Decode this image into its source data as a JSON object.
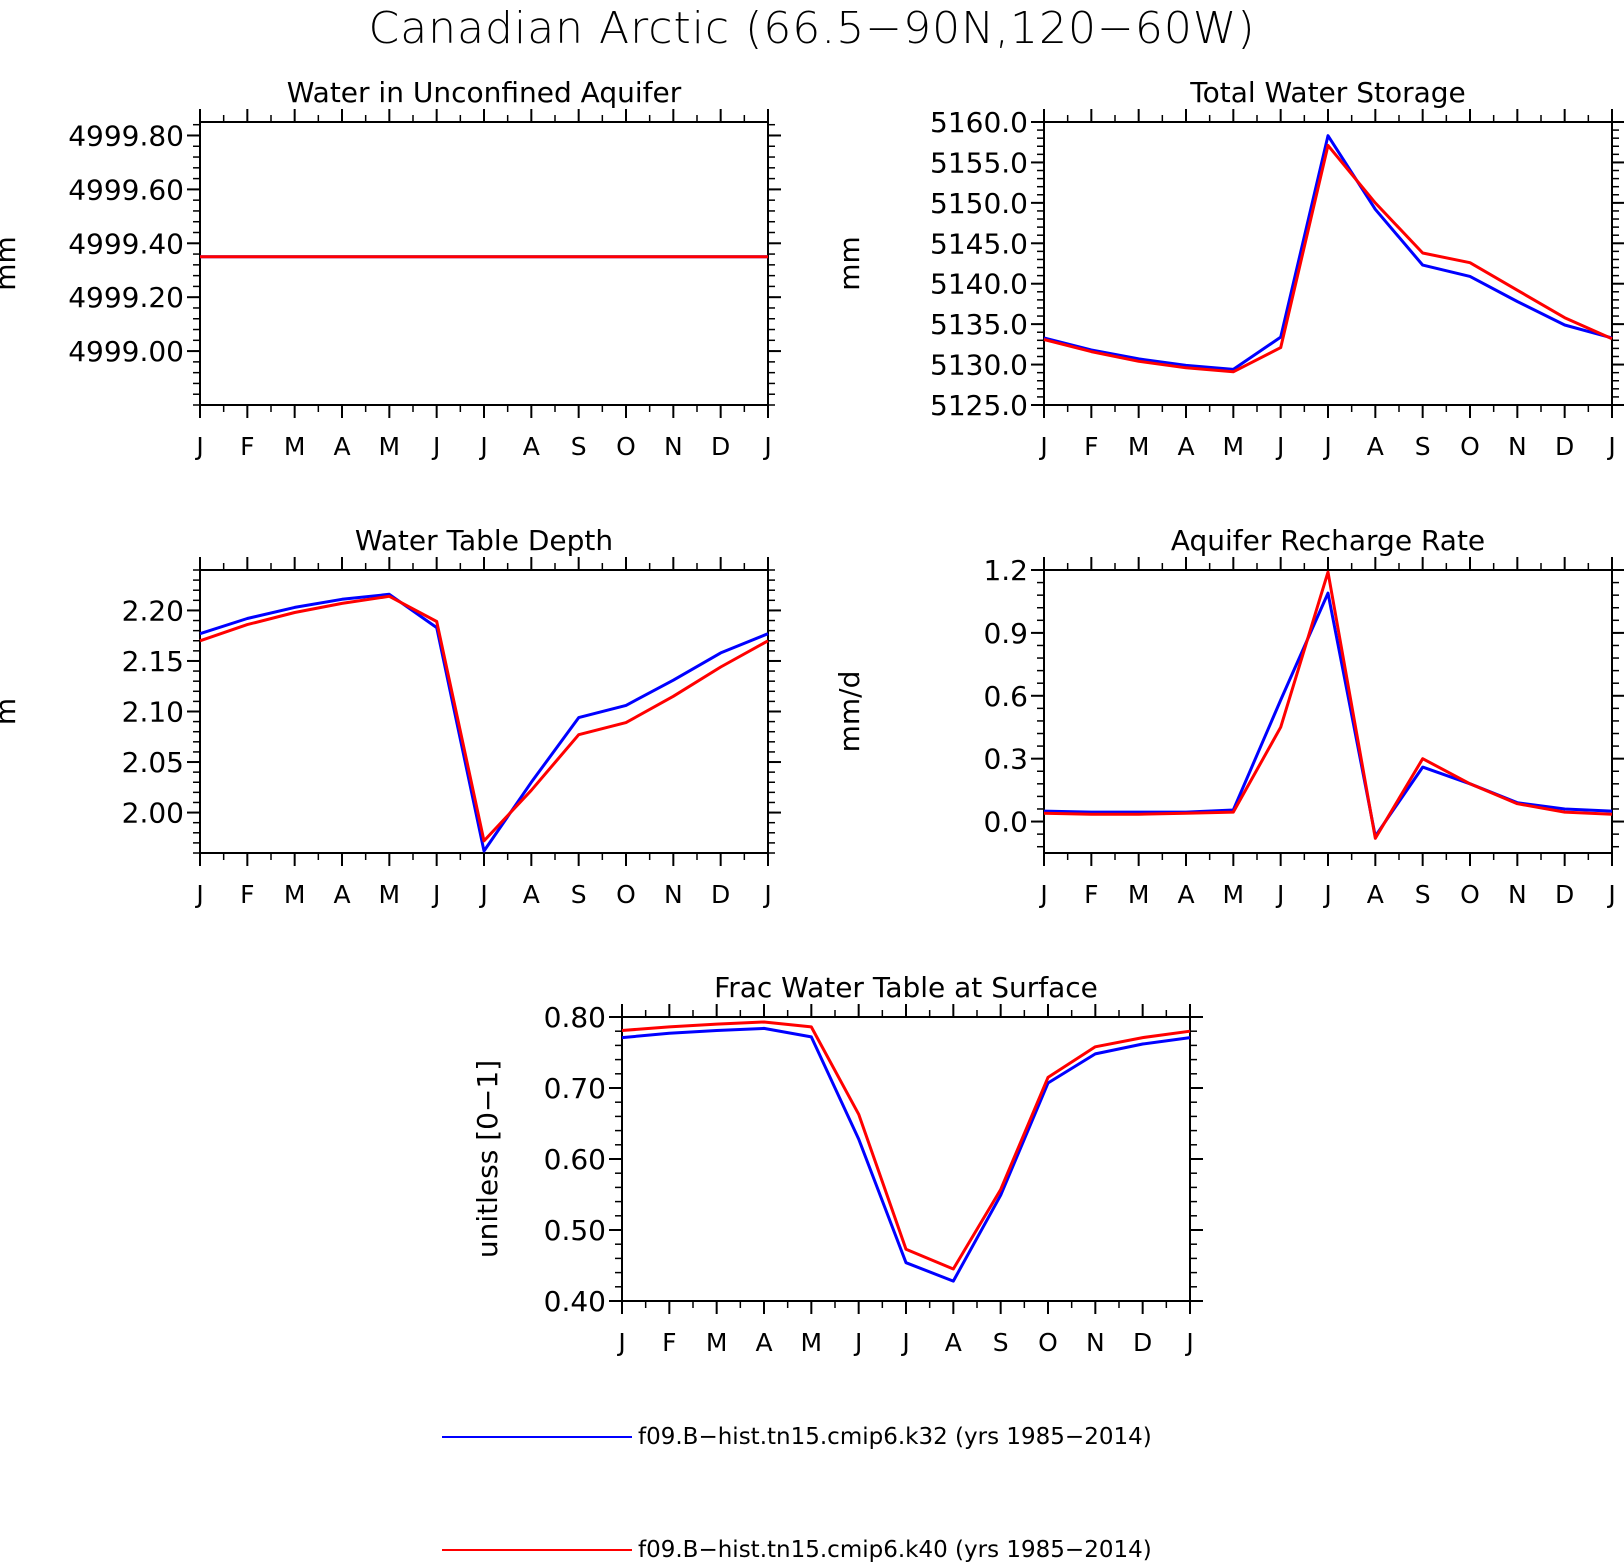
{
  "title": "Canadian Arctic (66.5−90N,120−60W)",
  "colors": {
    "run1": "#0000ff",
    "run2": "#ff0000"
  },
  "legend": [
    {
      "label": "f09.B−hist.tn15.cmip6.k32 (yrs 1985−2014)",
      "color": "#0000ff"
    },
    {
      "label": "f09.B−hist.tn15.cmip6.k40 (yrs 1985−2014)",
      "color": "#ff0000"
    }
  ],
  "chart_data": [
    {
      "id": "aquifer",
      "type": "line",
      "title": "Water in Unconfined Aquifer",
      "ylabel": "mm",
      "categories": [
        "J",
        "F",
        "M",
        "A",
        "M",
        "J",
        "J",
        "A",
        "S",
        "O",
        "N",
        "D",
        "J"
      ],
      "ylim": [
        4998.8,
        4999.85
      ],
      "yticks": [
        "4999.00",
        "4999.20",
        "4999.40",
        "4999.60",
        "4999.80"
      ],
      "ytick_values": [
        4999.0,
        4999.2,
        4999.4,
        4999.6,
        4999.8
      ],
      "series": [
        {
          "name": "f09.B−hist.tn15.cmip6.k32 (yrs 1985−2014)",
          "color": "#0000ff",
          "values": [
            4999.35,
            4999.35,
            4999.35,
            4999.35,
            4999.35,
            4999.35,
            4999.35,
            4999.35,
            4999.35,
            4999.35,
            4999.35,
            4999.35,
            4999.35
          ]
        },
        {
          "name": "f09.B−hist.tn15.cmip6.k40 (yrs 1985−2014)",
          "color": "#ff0000",
          "values": [
            4999.35,
            4999.35,
            4999.35,
            4999.35,
            4999.35,
            4999.35,
            4999.35,
            4999.35,
            4999.35,
            4999.35,
            4999.35,
            4999.35,
            4999.35
          ]
        }
      ]
    },
    {
      "id": "storage",
      "type": "line",
      "title": "Total Water Storage",
      "ylabel": "mm",
      "categories": [
        "J",
        "F",
        "M",
        "A",
        "M",
        "J",
        "J",
        "A",
        "S",
        "O",
        "N",
        "D",
        "J"
      ],
      "ylim": [
        5125.0,
        5160.0
      ],
      "yticks": [
        "5125.0",
        "5130.0",
        "5135.0",
        "5140.0",
        "5145.0",
        "5150.0",
        "5155.0",
        "5160.0"
      ],
      "ytick_values": [
        5125,
        5130,
        5135,
        5140,
        5145,
        5150,
        5155,
        5160
      ],
      "series": [
        {
          "name": "f09.B−hist.tn15.cmip6.k32 (yrs 1985−2014)",
          "color": "#0000ff",
          "values": [
            5133.3,
            5131.8,
            5130.7,
            5129.9,
            5129.4,
            5133.4,
            5158.3,
            5149.2,
            5142.3,
            5140.9,
            5137.8,
            5134.9,
            5133.3
          ]
        },
        {
          "name": "f09.B−hist.tn15.cmip6.k40 (yrs 1985−2014)",
          "color": "#ff0000",
          "values": [
            5133.1,
            5131.6,
            5130.4,
            5129.6,
            5129.1,
            5132.1,
            5157.1,
            5150.0,
            5143.8,
            5142.6,
            5139.2,
            5135.8,
            5133.2
          ]
        }
      ]
    },
    {
      "id": "depth",
      "type": "line",
      "title": "Water Table Depth",
      "ylabel": "m",
      "categories": [
        "J",
        "F",
        "M",
        "A",
        "M",
        "J",
        "J",
        "A",
        "S",
        "O",
        "N",
        "D",
        "J"
      ],
      "ylim": [
        1.96,
        2.24
      ],
      "yticks": [
        "2.00",
        "2.05",
        "2.10",
        "2.15",
        "2.20"
      ],
      "ytick_values": [
        2.0,
        2.05,
        2.1,
        2.15,
        2.2
      ],
      "series": [
        {
          "name": "f09.B−hist.tn15.cmip6.k32 (yrs 1985−2014)",
          "color": "#0000ff",
          "values": [
            2.177,
            2.192,
            2.203,
            2.211,
            2.216,
            2.183,
            1.962,
            2.03,
            2.094,
            2.106,
            2.131,
            2.158,
            2.177
          ]
        },
        {
          "name": "f09.B−hist.tn15.cmip6.k40 (yrs 1985−2014)",
          "color": "#ff0000",
          "values": [
            2.17,
            2.186,
            2.198,
            2.207,
            2.214,
            2.189,
            1.972,
            2.022,
            2.077,
            2.089,
            2.115,
            2.144,
            2.17
          ]
        }
      ]
    },
    {
      "id": "recharge",
      "type": "line",
      "title": "Aquifer Recharge Rate",
      "ylabel": "mm/d",
      "categories": [
        "J",
        "F",
        "M",
        "A",
        "M",
        "J",
        "J",
        "A",
        "S",
        "O",
        "N",
        "D",
        "J"
      ],
      "ylim": [
        -0.15,
        1.2
      ],
      "yticks": [
        "0.0",
        "0.3",
        "0.6",
        "0.9",
        "1.2"
      ],
      "ytick_values": [
        0.0,
        0.3,
        0.6,
        0.9,
        1.2
      ],
      "series": [
        {
          "name": "f09.B−hist.tn15.cmip6.k32 (yrs 1985−2014)",
          "color": "#0000ff",
          "values": [
            0.05,
            0.045,
            0.045,
            0.045,
            0.055,
            0.58,
            1.09,
            -0.07,
            0.26,
            0.18,
            0.09,
            0.06,
            0.05
          ]
        },
        {
          "name": "f09.B−hist.tn15.cmip6.k40 (yrs 1985−2014)",
          "color": "#ff0000",
          "values": [
            0.04,
            0.035,
            0.035,
            0.04,
            0.045,
            0.45,
            1.19,
            -0.08,
            0.3,
            0.18,
            0.085,
            0.045,
            0.035
          ]
        }
      ]
    },
    {
      "id": "frac",
      "type": "line",
      "title": "Frac Water Table at Surface",
      "ylabel": "unitless [0−1]",
      "categories": [
        "J",
        "F",
        "M",
        "A",
        "M",
        "J",
        "J",
        "A",
        "S",
        "O",
        "N",
        "D",
        "J"
      ],
      "ylim": [
        0.4,
        0.8
      ],
      "yticks": [
        "0.40",
        "0.50",
        "0.60",
        "0.70",
        "0.80"
      ],
      "ytick_values": [
        0.4,
        0.5,
        0.6,
        0.7,
        0.8
      ],
      "series": [
        {
          "name": "f09.B−hist.tn15.cmip6.k32 (yrs 1985−2014)",
          "color": "#0000ff",
          "values": [
            0.771,
            0.777,
            0.781,
            0.784,
            0.772,
            0.628,
            0.454,
            0.428,
            0.549,
            0.707,
            0.748,
            0.762,
            0.771
          ]
        },
        {
          "name": "f09.B−hist.tn15.cmip6.k40 (yrs 1985−2014)",
          "color": "#ff0000",
          "values": [
            0.781,
            0.786,
            0.79,
            0.793,
            0.786,
            0.663,
            0.473,
            0.445,
            0.557,
            0.715,
            0.758,
            0.771,
            0.78
          ]
        }
      ]
    }
  ]
}
